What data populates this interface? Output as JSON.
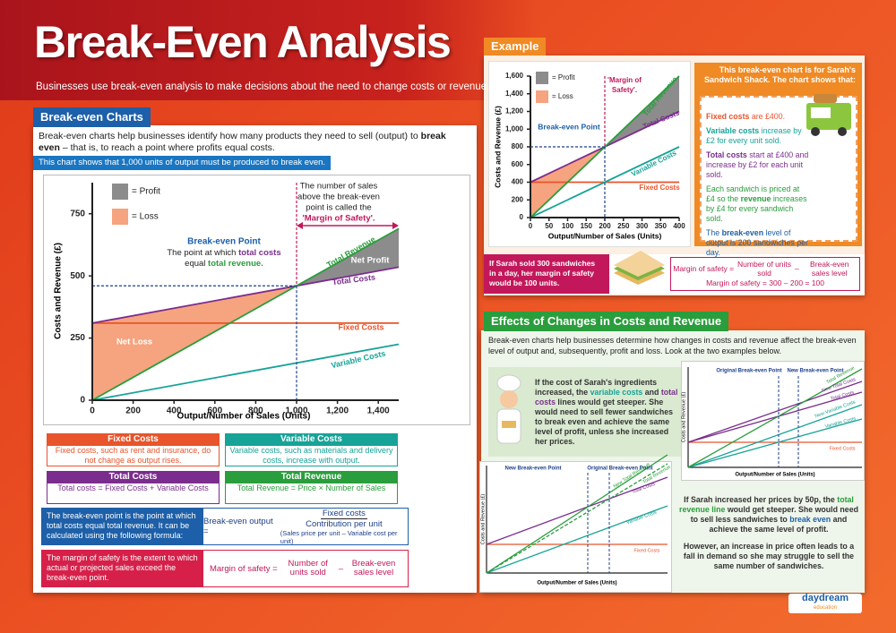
{
  "header": {
    "title": "Break-Even Analysis",
    "subtitle": "Businesses use break-even analysis to make decisions about the need to change costs or revenue."
  },
  "break_even_charts": {
    "heading": "Break-even Charts",
    "intro": {
      "parts": [
        "Break-even charts help businesses identify how many products they need to sell (output) to ",
        {
          "text": "break even",
          "color": "#1a1a1a"
        },
        " – that is, to reach a point where profits equal costs."
      ]
    },
    "note": "This chart shows that 1,000 units of output must be produced to break even.",
    "definitions": [
      {
        "title": "Fixed Costs",
        "text": "Fixed costs, such as rent and insurance, do not change as output rises.",
        "color": "#e8542b"
      },
      {
        "title": "Variable Costs",
        "text": "Variable costs, such as materials and delivery costs, increase with output.",
        "color": "#17a398"
      },
      {
        "title": "Total Costs",
        "text": "Total costs = Fixed Costs + Variable Costs",
        "color": "#7b2d8e"
      },
      {
        "title": "Total Revenue",
        "text": "Total Revenue = Price × Number of Sales",
        "color": "#2a9d3c"
      }
    ],
    "break_even_formula": {
      "text": "The break-even point is the point at which total costs equal total revenue. It can be calculated using the following formula:",
      "lhs": "Break-even output =",
      "numerator": "Fixed costs",
      "denominator": "Contribution per unit",
      "note": "(Sales price per unit – Variable cost per unit)"
    },
    "margin_formula": {
      "text": "The margin of safety is the extent to which actual or projected sales exceed the break-even point.",
      "lhs": "Margin of safety =",
      "term1": "Number of units sold",
      "minus": "–",
      "term2": "Break-even sales level"
    }
  },
  "chart_data": [
    {
      "type": "line",
      "x_label": "Output/Number of Sales (Units)",
      "y_label": "Costs and Revenue (£)",
      "x": [
        0,
        1500
      ],
      "series": [
        {
          "name": "Fixed Costs",
          "color": "#e8542b",
          "values": [
            310,
            310
          ]
        },
        {
          "name": "Variable Costs",
          "color": "#17a398",
          "values": [
            0,
            225
          ]
        },
        {
          "name": "Total Costs",
          "color": "#7b2d8e",
          "values": [
            310,
            535
          ]
        },
        {
          "name": "Total Revenue",
          "color": "#2a9d3c",
          "values": [
            0,
            690
          ]
        }
      ],
      "break_even": {
        "x": 1000,
        "y": 460
      },
      "xlim": [
        0,
        1500
      ],
      "ylim": [
        0,
        875
      ],
      "xticks": [
        0,
        200,
        400,
        600,
        800,
        {
          "value": 1000,
          "label": "1,000"
        },
        {
          "value": 1200,
          "label": "1,200"
        },
        {
          "value": 1400,
          "label": "1,400"
        }
      ],
      "yticks": [
        0,
        250,
        500,
        750
      ],
      "legend": [
        {
          "label": "= Profit",
          "color": "#8c8c8c"
        },
        {
          "label": "= Loss",
          "color": "#f5a47f"
        }
      ],
      "annotations": [
        "Break-even Point",
        {
          "parts": [
            "The point at which ",
            {
              "text": "total costs",
              "color": "#7b2d8e"
            }
          ]
        },
        {
          "parts": [
            "equal ",
            {
              "text": "total revenue.",
              "color": "#2a9d3c"
            }
          ]
        },
        "The number of sales",
        "above the break-even",
        "point is called the",
        "'Margin of Safety'.",
        "Net Profit",
        "Net Loss"
      ]
    },
    {
      "type": "line",
      "x_label": "Output/Number of Sales (Units)",
      "y_label": "Costs and Revenue (£)",
      "x": [
        0,
        400
      ],
      "series": [
        {
          "name": "Fixed Costs",
          "color": "#e8542b",
          "values": [
            400,
            400
          ]
        },
        {
          "name": "Variable Costs",
          "color": "#17a398",
          "values": [
            0,
            800
          ]
        },
        {
          "name": "Total Costs",
          "color": "#7b2d8e",
          "values": [
            400,
            1200
          ]
        },
        {
          "name": "Total Revenue",
          "color": "#2a9d3c",
          "values": [
            0,
            1600
          ]
        }
      ],
      "break_even": {
        "x": 200,
        "y": 800
      },
      "xlim": [
        0,
        400
      ],
      "ylim": [
        0,
        1600
      ],
      "xticks": [
        0,
        50,
        100,
        150,
        200,
        250,
        300,
        350,
        400
      ],
      "yticks": [
        0,
        200,
        400,
        600,
        800,
        {
          "value": 1000,
          "label": "1,000"
        },
        {
          "value": 1200,
          "label": "1,200"
        },
        {
          "value": 1400,
          "label": "1,400"
        },
        {
          "value": 1600,
          "label": "1,600"
        }
      ],
      "legend": [
        {
          "label": "= Profit",
          "color": "#8c8c8c"
        },
        {
          "label": "= Loss",
          "color": "#f5a47f"
        }
      ],
      "annotations": [
        "'Margin of",
        "Safety'.",
        "Break-even Point"
      ]
    }
  ],
  "example": {
    "heading": "Example",
    "box_title": "This break-even chart is for Sarah's Sandwich Shack. The chart shows that:",
    "points": [
      {
        "color": "#e8542b",
        "parts": [
          {
            "text": "Fixed costs",
            "color": "#e8542b"
          },
          " are £400."
        ]
      },
      {
        "color": "#17a398",
        "parts": [
          {
            "text": "Variable costs",
            "color": "#17a398"
          },
          " increase by £2 for every unit sold."
        ]
      },
      {
        "color": "#7b2d8e",
        "parts": [
          {
            "text": "Total costs",
            "color": "#7b2d8e"
          },
          " start at £400 and increase by £2 for each unit sold."
        ]
      },
      {
        "color": "#2a9d3c",
        "parts": [
          "Each sandwich is priced at £4 so the ",
          {
            "text": "revenue",
            "color": "#2a9d3c"
          },
          " increases by £4 for every sandwich sold."
        ]
      },
      {
        "color": "#1d5fa8",
        "parts": [
          "The ",
          {
            "text": "break-even",
            "color": "#1d5fa8"
          },
          " level of output is 200 sandwiches per day."
        ]
      }
    ],
    "scenario": "If Sarah sold 300 sandwiches in a day, her margin of safety would be 100 units.",
    "formula": {
      "lhs": "Margin of safety =",
      "term1": "Number of units sold",
      "minus": "–",
      "term2": "Break-even sales level"
    },
    "calculation": "Margin of safety = 300 – 200 = 100"
  },
  "effects": {
    "heading": "Effects of Changes in Costs and Revenue",
    "intro": "Break-even charts help businesses determine how changes in costs and revenue affect the break-even level of output and, subsequently, profit and loss. Look at the two examples below.",
    "case1": {
      "parts": [
        "If the cost of Sarah's ingredients increased, the ",
        {
          "text": "variable costs",
          "color": "#17a398"
        },
        " and ",
        {
          "text": "total costs",
          "color": "#7b2d8e"
        },
        " lines would get steeper. She would need to sell fewer sandwiches to break even and achieve the same level of profit, unless she increased her prices."
      ]
    },
    "case2": [
      {
        "parts": [
          "If Sarah increased her prices by 50p, the ",
          {
            "text": "total revenue line",
            "color": "#2a9d3c"
          },
          " would get steeper. She would need to sell less sandwiches to ",
          {
            "text": "break even",
            "color": "#1d5fa8"
          },
          " and achieve the same level of profit."
        ]
      },
      "However, an increase in price often leads to a fall in demand so she may struggle to sell the same number of sandwiches."
    ],
    "diagrams": [
      {
        "y_label": "Costs and Revenue (£)",
        "x_label": "Output/Number of Sales (Units)",
        "labels": [
          "Original Break-even Point",
          "New Break-even Point",
          "Total Revenue",
          "New Total Costs",
          "Total Costs",
          "New Variable Costs",
          "Variable Costs",
          "Fixed Costs"
        ]
      },
      {
        "y_label": "Costs and Revenue (£)",
        "x_label": "Output/Number of Sales (Units)",
        "labels": [
          "New Break-even Point",
          "Original Break-even Point",
          "New Total Revenue",
          "Total Revenue",
          "Total Costs",
          "Variable Costs",
          "Fixed Costs"
        ]
      }
    ]
  },
  "footer": {
    "logo": "daydream",
    "tagline": "education"
  }
}
